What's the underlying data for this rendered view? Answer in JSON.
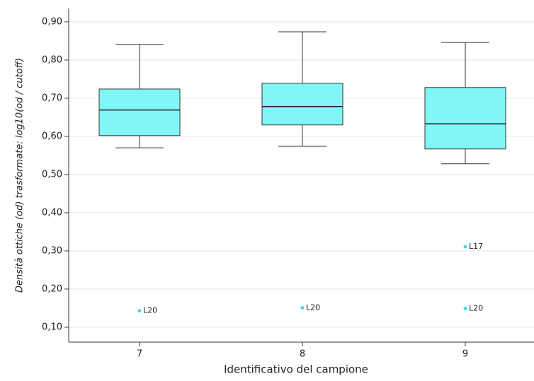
{
  "chart_data": {
    "type": "box",
    "x_label": "Identificativo del campione",
    "y_label": "Densità ottiche (od) trasformate: log10(od / cutoff)",
    "categories": [
      "7",
      "8",
      "9"
    ],
    "whisker_low": [
      0.57,
      0.574,
      0.528
    ],
    "q1": [
      0.602,
      0.63,
      0.567
    ],
    "median": [
      0.669,
      0.678,
      0.633
    ],
    "q3": [
      0.724,
      0.739,
      0.728
    ],
    "whisker_high": [
      0.841,
      0.874,
      0.846
    ],
    "outliers": [
      [
        {
          "value": 0.143,
          "label": "L20"
        }
      ],
      [
        {
          "value": 0.151,
          "label": "L20"
        }
      ],
      [
        {
          "value": 0.311,
          "label": "L17"
        },
        {
          "value": 0.149,
          "label": "L20"
        }
      ]
    ],
    "color": "#80f6f6",
    "outlier_color": "#40dcdc",
    "ylim": [
      0.061,
      0.935
    ],
    "yticks": [
      {
        "value": 0.1,
        "label": "0,10"
      },
      {
        "value": 0.2,
        "label": "0,20"
      },
      {
        "value": 0.3,
        "label": "0,30"
      },
      {
        "value": 0.4,
        "label": "0,40"
      },
      {
        "value": 0.5,
        "label": "0,50"
      },
      {
        "value": 0.6,
        "label": "0,60"
      },
      {
        "value": 0.7,
        "label": "0,70"
      },
      {
        "value": 0.8,
        "label": "0,80"
      },
      {
        "value": 0.9,
        "label": "0,90"
      }
    ],
    "grid": true
  }
}
